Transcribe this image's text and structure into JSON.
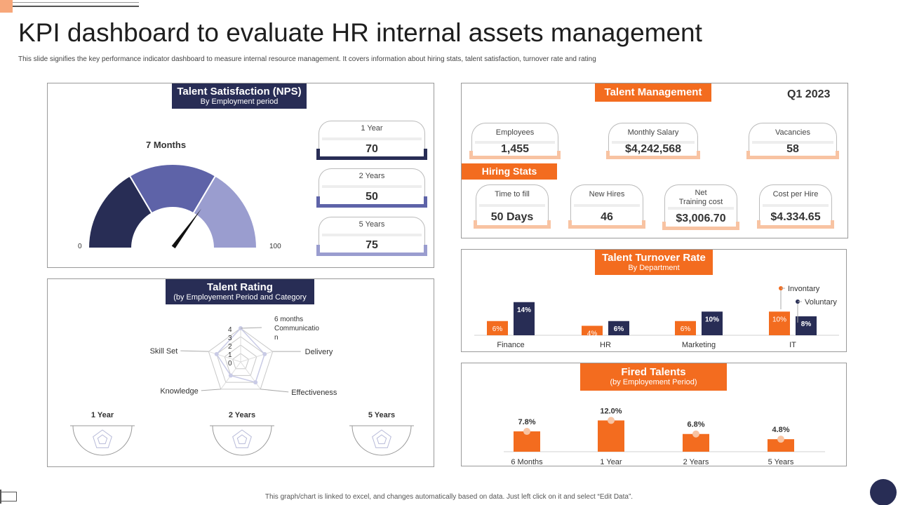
{
  "header": {
    "title": "KPI dashboard to evaluate HR internal assets management",
    "subtitle": "This slide signifies the key performance indicator dashboard to measure internal resource management. It covers information about hiring stats, talent satisfaction, turnover rate and rating"
  },
  "nps": {
    "title": "Talent Satisfaction (NPS)",
    "subtitle": "By Employment period",
    "gauge_label": "7 Months",
    "min_label": "0",
    "max_label": "100",
    "cards": [
      {
        "label": "1 Year",
        "value": "70",
        "color": "#282d55"
      },
      {
        "label": "2 Years",
        "value": "50",
        "color": "#5e63a8"
      },
      {
        "label": "5 Years",
        "value": "75",
        "color": "#9a9dcf"
      }
    ]
  },
  "talent_mgmt": {
    "title": "Talent Management",
    "period": "Q1 2023",
    "hiring_title": "Hiring Stats",
    "top": [
      {
        "label": "Employees",
        "value": "1,455"
      },
      {
        "label": "Monthly Salary",
        "value": "$4,242,568"
      },
      {
        "label": "Vacancies",
        "value": "58"
      }
    ],
    "hiring": [
      {
        "label": "Time to fill",
        "value": "50 Days"
      },
      {
        "label": "New Hires",
        "value": "46"
      },
      {
        "label": "Net\nTraining cost",
        "value": "$3,006.70"
      },
      {
        "label": "Cost per Hire",
        "value": "$4.334.65"
      }
    ]
  },
  "rating": {
    "title": "Talent Rating",
    "subtitle": "(by Employement Period and Category",
    "radar_axes": [
      "6 months Communication",
      "Delivery",
      "Effectiveness",
      "Knowledge",
      "Skill Set"
    ],
    "axis_ticks": [
      "4",
      "3",
      "2",
      "1",
      "0"
    ],
    "top_label_lines": [
      "6 months",
      "Communicatio",
      "n"
    ],
    "periods": [
      "1 Year",
      "2 Years",
      "5 Years"
    ]
  },
  "turnover": {
    "title": "Talent Turnover Rate",
    "subtitle": "By Department"
  },
  "fired": {
    "title": "Fired Talents",
    "subtitle": "(by Employement Period)"
  },
  "chart_data": [
    {
      "type": "gauge",
      "title": "Talent Satisfaction (NPS)",
      "label": "7 Months",
      "min": 0,
      "max": 100,
      "segments": [
        {
          "color": "#282d55",
          "from": 0,
          "to": 33
        },
        {
          "color": "#5e63a8",
          "from": 33,
          "to": 67
        },
        {
          "color": "#9a9dcf",
          "from": 67,
          "to": 100
        }
      ],
      "needle": 70
    },
    {
      "type": "radar",
      "title": "Talent Rating",
      "axes": [
        "Communication",
        "Delivery",
        "Effectiveness",
        "Knowledge",
        "Skill Set"
      ],
      "range": [
        0,
        4
      ],
      "series": [
        {
          "values": [
            4,
            3,
            3,
            2,
            3
          ]
        }
      ]
    },
    {
      "type": "bar",
      "title": "Talent Turnover Rate",
      "categories": [
        "Finance",
        "HR",
        "Marketing",
        "IT"
      ],
      "series": [
        {
          "name": "Invontary",
          "color": "#f36c1f",
          "values": [
            6,
            4,
            6,
            10
          ],
          "labels": [
            "6%",
            "4%",
            "6%",
            "10%"
          ]
        },
        {
          "name": "Voluntary",
          "color": "#282d55",
          "values": [
            14,
            6,
            10,
            8
          ],
          "labels": [
            "14%",
            "6%",
            "10%",
            "8%"
          ]
        }
      ],
      "ylim": [
        0,
        16
      ]
    },
    {
      "type": "bar",
      "title": "Fired Talents",
      "categories": [
        "6 Months",
        "1 Year",
        "2 Years",
        "5 Years"
      ],
      "values": [
        7.8,
        12.0,
        6.8,
        4.8
      ],
      "labels": [
        "7.8%",
        "12.0%",
        "6.8%",
        "4.8%"
      ],
      "color": "#f36c1f",
      "ylim": [
        0,
        14
      ]
    }
  ],
  "footer": "This graph/chart is linked to excel, and changes automatically based on data. Just left click on it and select “Edit Data”."
}
